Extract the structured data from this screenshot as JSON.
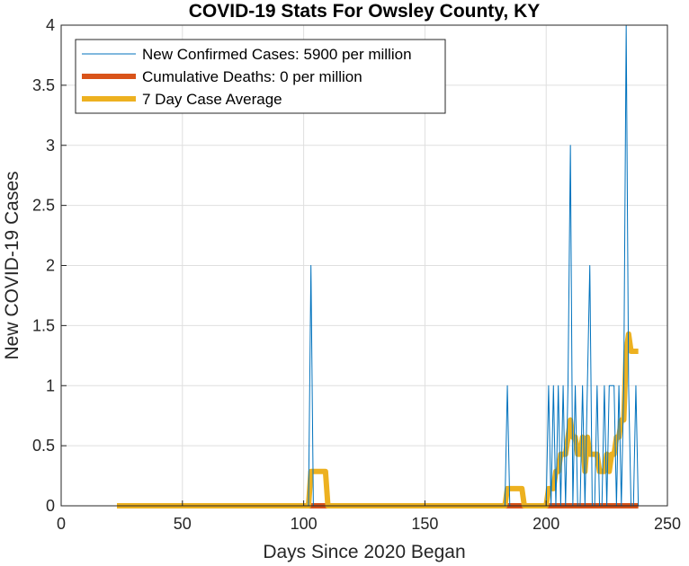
{
  "chart_data": {
    "type": "line",
    "title": "COVID-19 Stats For Owsley County, KY",
    "xlabel": "Days Since 2020 Began",
    "ylabel": "New COVID-19 Cases",
    "xlim": [
      0,
      250
    ],
    "ylim": [
      0,
      4
    ],
    "x_ticks": [
      0,
      50,
      100,
      150,
      200,
      250
    ],
    "y_ticks": [
      0,
      0.5,
      1,
      1.5,
      2,
      2.5,
      3,
      3.5,
      4
    ],
    "grid": true,
    "legend_position": "top-left",
    "series": [
      {
        "name": "New Confirmed Cases: 5900 per million",
        "color": "#0072BD",
        "line_weight": "thin",
        "x": [
          23,
          102,
          103,
          104,
          183,
          184,
          185,
          200,
          201,
          202,
          203,
          204,
          205,
          206,
          207,
          208,
          209,
          210,
          211,
          212,
          213,
          214,
          215,
          216,
          217,
          218,
          219,
          220,
          221,
          222,
          223,
          224,
          225,
          226,
          227,
          228,
          229,
          230,
          231,
          232,
          233,
          234,
          235,
          236,
          237,
          238
        ],
        "y": [
          0,
          0,
          2,
          0,
          0,
          1,
          0,
          0,
          1,
          0,
          1,
          0,
          1,
          0,
          1,
          0,
          1,
          3,
          0,
          1,
          0,
          0,
          1,
          0,
          1,
          2,
          0,
          0,
          1,
          0,
          0,
          1,
          0,
          1,
          1,
          1,
          0,
          1,
          0,
          1,
          4,
          1,
          0,
          0,
          1,
          0
        ]
      },
      {
        "name": "Cumulative Deaths: 0 per million",
        "color": "#D95319",
        "line_weight": "thick",
        "x": [
          23,
          238
        ],
        "y": [
          0,
          0
        ]
      },
      {
        "name": "7 Day Case Average",
        "color": "#EDB120",
        "line_weight": "thick",
        "x": [
          23,
          102,
          103,
          104,
          109,
          110,
          183,
          184,
          185,
          190,
          191,
          200,
          201,
          203,
          204,
          205,
          206,
          207,
          208,
          209,
          210,
          211,
          212,
          213,
          214,
          215,
          216,
          217,
          218,
          219,
          220,
          221,
          222,
          223,
          224,
          225,
          226,
          227,
          228,
          229,
          230,
          231,
          232,
          233,
          234,
          235,
          236,
          237,
          238
        ],
        "y": [
          0,
          0,
          0.286,
          0.286,
          0.286,
          0,
          0,
          0.143,
          0.143,
          0.143,
          0,
          0,
          0.143,
          0.143,
          0.286,
          0.286,
          0.429,
          0.429,
          0.429,
          0.571,
          0.714,
          0.571,
          0.571,
          0.429,
          0.429,
          0.571,
          0.286,
          0.571,
          0.429,
          0.429,
          0.429,
          0.429,
          0.286,
          0.286,
          0.286,
          0.429,
          0.286,
          0.429,
          0.429,
          0.571,
          0.571,
          0.714,
          0.714,
          1.286,
          1.429,
          1.286,
          1.286,
          1.286,
          1.286
        ]
      }
    ]
  }
}
